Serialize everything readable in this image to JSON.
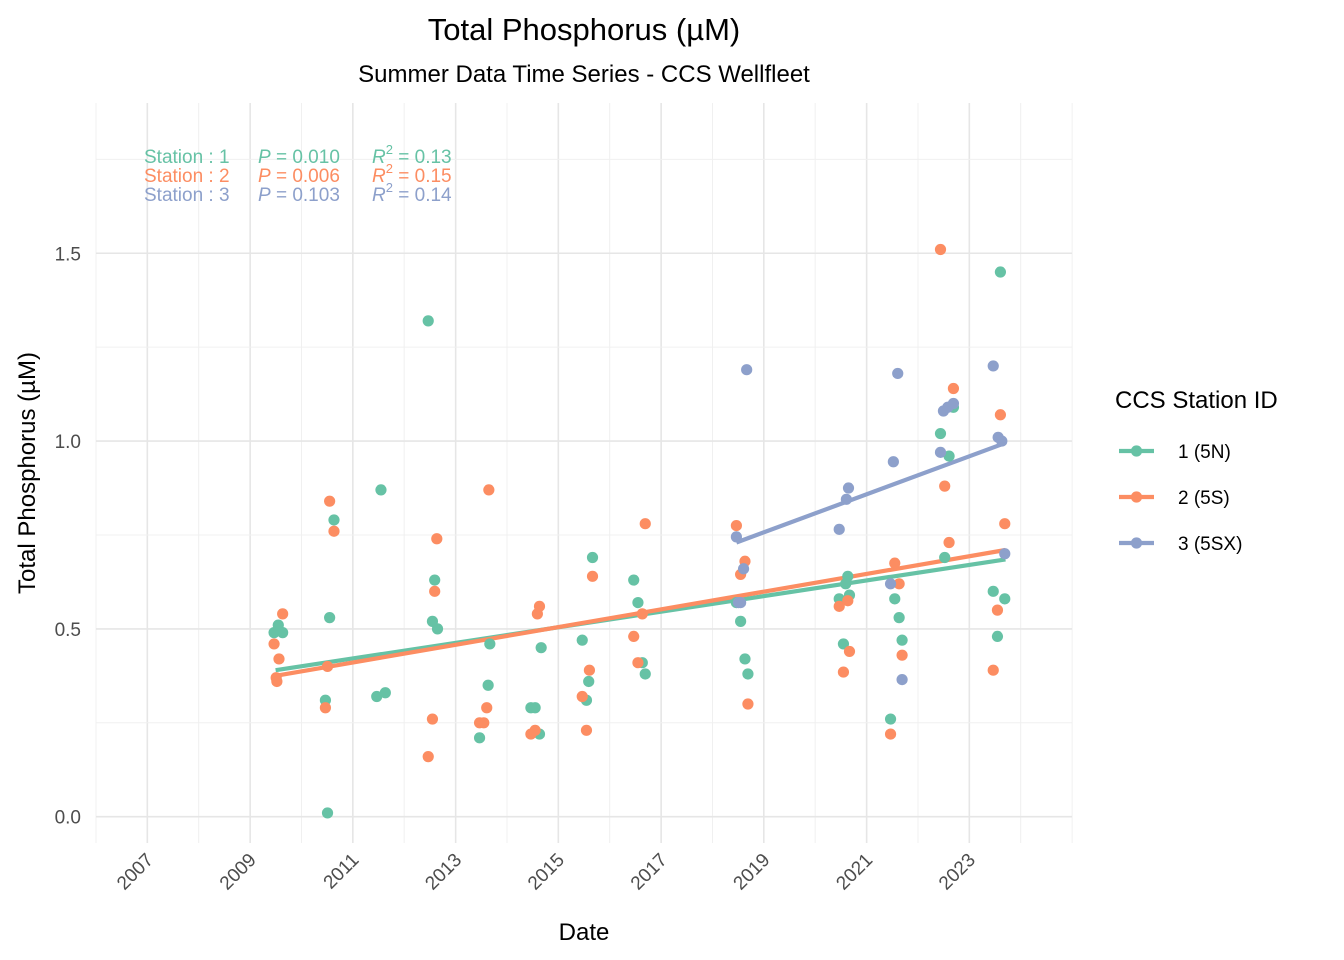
{
  "chart_data": {
    "type": "scatter",
    "title": "Total Phosphorus (µM)",
    "subtitle": "Summer Data Time Series - CCS Wellfleet",
    "xlabel": "Date",
    "ylabel": "Total Phosphorus (µM)",
    "xlim": [
      "2006-01-01",
      "2024-12-31"
    ],
    "ylim": [
      -0.07,
      1.9
    ],
    "x_ticks": [
      "2007",
      "2009",
      "2011",
      "2013",
      "2015",
      "2017",
      "2019",
      "2021",
      "2023"
    ],
    "y_ticks": [
      "0.0",
      "0.5",
      "1.0",
      "1.5"
    ],
    "grid": true,
    "legend_title": "CCS Station ID",
    "legend_position": "right",
    "stats": [
      {
        "station": "Station : 1",
        "p_label": "P",
        "p_value": "= 0.010",
        "r2_label": "R",
        "r2_sup": "2",
        "r2_value": "= 0.13",
        "color": "#66c2a5"
      },
      {
        "station": "Station : 2",
        "p_label": "P",
        "p_value": "= 0.006",
        "r2_label": "R",
        "r2_sup": "2",
        "r2_value": "= 0.15",
        "color": "#fc8d62"
      },
      {
        "station": "Station : 3",
        "p_label": "P",
        "p_value": "= 0.103",
        "r2_label": "R",
        "r2_sup": "2",
        "r2_value": "= 0.14",
        "color": "#8da0cb"
      }
    ],
    "series": [
      {
        "name": "1 (5N)",
        "color": "#66c2a5",
        "trend": {
          "x": [
            "2009-07-01",
            "2023-09-15"
          ],
          "y": [
            0.39,
            0.685
          ]
        },
        "points": [
          {
            "x": "2009-06-20",
            "y": 0.49
          },
          {
            "x": "2009-07-20",
            "y": 0.51
          },
          {
            "x": "2009-08-20",
            "y": 0.49
          },
          {
            "x": "2010-06-20",
            "y": 0.31
          },
          {
            "x": "2010-07-05",
            "y": 0.01
          },
          {
            "x": "2010-07-20",
            "y": 0.53
          },
          {
            "x": "2010-08-20",
            "y": 0.79
          },
          {
            "x": "2011-06-20",
            "y": 0.32
          },
          {
            "x": "2011-07-20",
            "y": 0.87
          },
          {
            "x": "2011-08-20",
            "y": 0.33
          },
          {
            "x": "2012-06-20",
            "y": 1.32
          },
          {
            "x": "2012-07-20",
            "y": 0.52
          },
          {
            "x": "2012-08-05",
            "y": 0.63
          },
          {
            "x": "2012-08-25",
            "y": 0.5
          },
          {
            "x": "2013-06-20",
            "y": 0.21
          },
          {
            "x": "2013-08-20",
            "y": 0.35
          },
          {
            "x": "2013-09-01",
            "y": 0.46
          },
          {
            "x": "2014-06-20",
            "y": 0.29
          },
          {
            "x": "2014-07-20",
            "y": 0.29
          },
          {
            "x": "2014-08-20",
            "y": 0.22
          },
          {
            "x": "2014-09-01",
            "y": 0.45
          },
          {
            "x": "2015-06-20",
            "y": 0.47
          },
          {
            "x": "2015-07-20",
            "y": 0.31
          },
          {
            "x": "2015-08-05",
            "y": 0.36
          },
          {
            "x": "2015-09-01",
            "y": 0.69
          },
          {
            "x": "2016-06-20",
            "y": 0.63
          },
          {
            "x": "2016-07-20",
            "y": 0.57
          },
          {
            "x": "2016-08-20",
            "y": 0.41
          },
          {
            "x": "2016-09-10",
            "y": 0.38
          },
          {
            "x": "2018-06-20",
            "y": 0.57
          },
          {
            "x": "2018-07-20",
            "y": 0.52
          },
          {
            "x": "2018-08-20",
            "y": 0.42
          },
          {
            "x": "2018-09-10",
            "y": 0.38
          },
          {
            "x": "2020-06-20",
            "y": 0.58
          },
          {
            "x": "2020-07-20",
            "y": 0.46
          },
          {
            "x": "2020-08-05",
            "y": 0.62
          },
          {
            "x": "2020-08-20",
            "y": 0.64
          },
          {
            "x": "2020-09-01",
            "y": 0.59
          },
          {
            "x": "2021-06-20",
            "y": 0.26
          },
          {
            "x": "2021-07-20",
            "y": 0.58
          },
          {
            "x": "2021-08-20",
            "y": 0.53
          },
          {
            "x": "2021-09-10",
            "y": 0.47
          },
          {
            "x": "2022-06-10",
            "y": 1.02
          },
          {
            "x": "2022-07-10",
            "y": 0.69
          },
          {
            "x": "2022-08-10",
            "y": 0.96
          },
          {
            "x": "2022-09-10",
            "y": 1.09
          },
          {
            "x": "2023-06-20",
            "y": 0.6
          },
          {
            "x": "2023-07-20",
            "y": 0.48
          },
          {
            "x": "2023-08-10",
            "y": 1.45
          },
          {
            "x": "2023-09-10",
            "y": 0.58
          }
        ]
      },
      {
        "name": "2 (5S)",
        "color": "#fc8d62",
        "trend": {
          "x": [
            "2009-07-01",
            "2023-09-15"
          ],
          "y": [
            0.375,
            0.71
          ]
        },
        "points": [
          {
            "x": "2009-06-20",
            "y": 0.46
          },
          {
            "x": "2009-07-05",
            "y": 0.37
          },
          {
            "x": "2009-07-10",
            "y": 0.36
          },
          {
            "x": "2009-07-25",
            "y": 0.42
          },
          {
            "x": "2009-08-20",
            "y": 0.54
          },
          {
            "x": "2010-06-20",
            "y": 0.29
          },
          {
            "x": "2010-07-05",
            "y": 0.4
          },
          {
            "x": "2010-07-20",
            "y": 0.84
          },
          {
            "x": "2010-08-20",
            "y": 0.76
          },
          {
            "x": "2012-06-20",
            "y": 0.16
          },
          {
            "x": "2012-07-20",
            "y": 0.26
          },
          {
            "x": "2012-08-05",
            "y": 0.6
          },
          {
            "x": "2012-08-20",
            "y": 0.74
          },
          {
            "x": "2013-06-20",
            "y": 0.25
          },
          {
            "x": "2013-07-20",
            "y": 0.25
          },
          {
            "x": "2013-08-10",
            "y": 0.29
          },
          {
            "x": "2013-08-25",
            "y": 0.87
          },
          {
            "x": "2014-06-20",
            "y": 0.22
          },
          {
            "x": "2014-07-20",
            "y": 0.23
          },
          {
            "x": "2014-08-05",
            "y": 0.54
          },
          {
            "x": "2014-08-20",
            "y": 0.56
          },
          {
            "x": "2015-06-20",
            "y": 0.32
          },
          {
            "x": "2015-07-20",
            "y": 0.23
          },
          {
            "x": "2015-08-10",
            "y": 0.39
          },
          {
            "x": "2015-09-01",
            "y": 0.64
          },
          {
            "x": "2016-06-20",
            "y": 0.48
          },
          {
            "x": "2016-07-20",
            "y": 0.41
          },
          {
            "x": "2016-08-20",
            "y": 0.54
          },
          {
            "x": "2016-09-10",
            "y": 0.78
          },
          {
            "x": "2018-06-20",
            "y": 0.775
          },
          {
            "x": "2018-07-20",
            "y": 0.645
          },
          {
            "x": "2018-08-20",
            "y": 0.68
          },
          {
            "x": "2018-09-10",
            "y": 0.3
          },
          {
            "x": "2020-06-20",
            "y": 0.56
          },
          {
            "x": "2020-07-20",
            "y": 0.385
          },
          {
            "x": "2020-08-20",
            "y": 0.575
          },
          {
            "x": "2020-09-01",
            "y": 0.44
          },
          {
            "x": "2021-06-20",
            "y": 0.22
          },
          {
            "x": "2021-07-20",
            "y": 0.675
          },
          {
            "x": "2021-08-20",
            "y": 0.62
          },
          {
            "x": "2021-09-10",
            "y": 0.43
          },
          {
            "x": "2022-06-10",
            "y": 1.51
          },
          {
            "x": "2022-07-10",
            "y": 0.88
          },
          {
            "x": "2022-08-10",
            "y": 0.73
          },
          {
            "x": "2022-09-10",
            "y": 1.14
          },
          {
            "x": "2023-06-20",
            "y": 0.39
          },
          {
            "x": "2023-07-20",
            "y": 0.55
          },
          {
            "x": "2023-08-10",
            "y": 1.07
          },
          {
            "x": "2023-09-10",
            "y": 0.78
          }
        ]
      },
      {
        "name": "3 (5SX)",
        "color": "#8da0cb",
        "trend": {
          "x": [
            "2018-06-20",
            "2023-09-15"
          ],
          "y": [
            0.73,
            0.995
          ]
        },
        "points": [
          {
            "x": "2018-06-20",
            "y": 0.745
          },
          {
            "x": "2018-07-05",
            "y": 0.57
          },
          {
            "x": "2018-07-20",
            "y": 0.57
          },
          {
            "x": "2018-08-10",
            "y": 0.66
          },
          {
            "x": "2018-09-01",
            "y": 1.19
          },
          {
            "x": "2020-06-20",
            "y": 0.765
          },
          {
            "x": "2020-08-10",
            "y": 0.845
          },
          {
            "x": "2020-08-25",
            "y": 0.875
          },
          {
            "x": "2021-06-20",
            "y": 0.62
          },
          {
            "x": "2021-07-10",
            "y": 0.945
          },
          {
            "x": "2021-08-10",
            "y": 1.18
          },
          {
            "x": "2021-09-10",
            "y": 0.365
          },
          {
            "x": "2022-06-10",
            "y": 0.97
          },
          {
            "x": "2022-07-01",
            "y": 1.08
          },
          {
            "x": "2022-08-01",
            "y": 1.09
          },
          {
            "x": "2022-09-10",
            "y": 1.1
          },
          {
            "x": "2023-06-20",
            "y": 1.2
          },
          {
            "x": "2023-07-25",
            "y": 1.01
          },
          {
            "x": "2023-08-20",
            "y": 1.0
          },
          {
            "x": "2023-09-10",
            "y": 0.7
          }
        ]
      }
    ]
  }
}
